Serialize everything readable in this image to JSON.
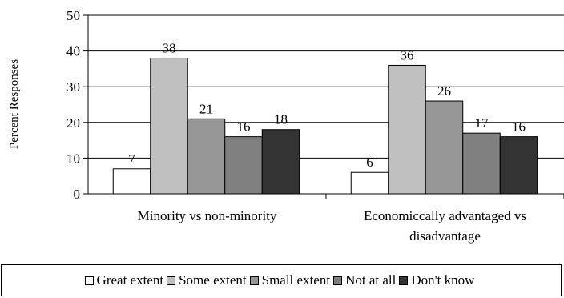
{
  "chart_data": {
    "type": "bar",
    "categories": [
      "Minority vs non-minority",
      "Economiccally advantaged vs disadvantage"
    ],
    "category_lines": [
      [
        "Minority vs non-minority"
      ],
      [
        "Economiccally advantaged vs",
        "disadvantage"
      ]
    ],
    "series": [
      {
        "name": "Great extent",
        "values": [
          7,
          6
        ],
        "color": "#ffffff"
      },
      {
        "name": "Some extent",
        "values": [
          38,
          36
        ],
        "color": "#c0c0c0"
      },
      {
        "name": "Small extent",
        "values": [
          21,
          26
        ],
        "color": "#969696"
      },
      {
        "name": "Not at all",
        "values": [
          16,
          17
        ],
        "color": "#808080"
      },
      {
        "name": "Don't know",
        "values": [
          18,
          16
        ],
        "color": "#333333"
      }
    ],
    "ylabel": "Percent Responses",
    "ylim": [
      0,
      50
    ],
    "yticks": [
      0,
      10,
      20,
      30,
      40,
      50
    ],
    "grid": true,
    "legend": "bottom"
  }
}
